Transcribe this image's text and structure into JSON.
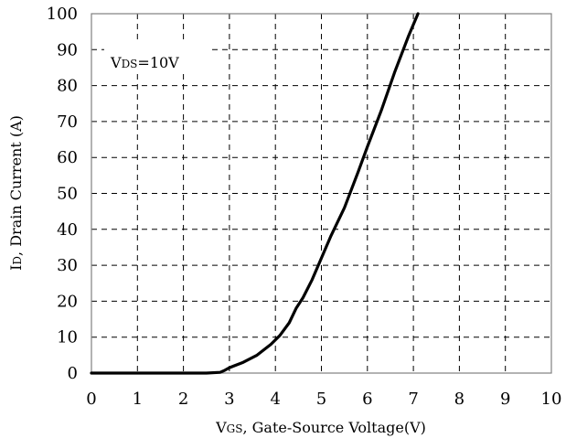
{
  "chart_data": {
    "type": "line",
    "xlabel": {
      "main": "V",
      "sub": "GS",
      "rest": ", Gate-Source Voltage(V)"
    },
    "ylabel": {
      "main": "I",
      "sub": "D",
      "rest": ", Drain Current (A)"
    },
    "annotation": {
      "main": "V",
      "sub": "DS",
      "rest": "=10V"
    },
    "xlim": [
      0,
      10
    ],
    "ylim": [
      0,
      100
    ],
    "x_ticks": [
      "0",
      "1",
      "2",
      "3",
      "4",
      "5",
      "6",
      "7",
      "8",
      "9",
      "10"
    ],
    "y_ticks": [
      "0",
      "10",
      "20",
      "30",
      "40",
      "50",
      "60",
      "70",
      "80",
      "90",
      "100"
    ],
    "grid": true,
    "grid_style": "dashed",
    "line_color": "#000000",
    "series": [
      {
        "x": [
          0,
          2.5,
          2.8,
          2.9,
          3.0,
          3.3,
          3.6,
          3.9,
          4.1,
          4.3,
          4.45,
          4.6,
          4.8,
          5.0,
          5.2,
          5.5,
          5.8,
          6.0,
          6.3,
          6.6,
          6.9,
          7.1
        ],
        "y": [
          0,
          0,
          0.2,
          0.8,
          1.5,
          3,
          5,
          8,
          10.5,
          14,
          18,
          21,
          26,
          32,
          38,
          46,
          56,
          63,
          73,
          84,
          94,
          100
        ]
      }
    ]
  }
}
